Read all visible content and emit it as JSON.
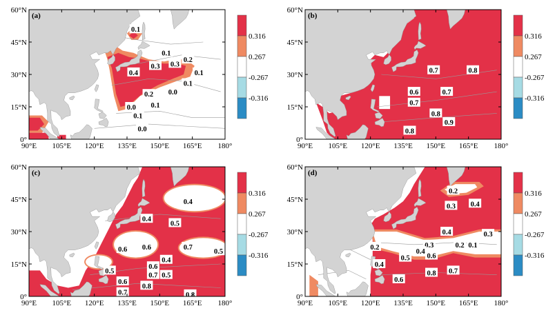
{
  "colors": {
    "land": "#d3d3d3",
    "ocean": "#ffffff",
    "strong_pos": "#e33148",
    "weak_pos": "#ef8a62",
    "neutral": "#ffffff",
    "weak_neg": "#a6dbe4",
    "strong_neg": "#2b8cc4",
    "contour": "#9a9a9a"
  },
  "axes": {
    "x_ticks": [
      "90°E",
      "105°E",
      "120°E",
      "135°E",
      "150°E",
      "165°E",
      "180°"
    ],
    "y_ticks": [
      "0°",
      "15°N",
      "30°N",
      "45°N",
      "60°N"
    ],
    "x_range": [
      90,
      180
    ],
    "y_range": [
      0,
      60
    ]
  },
  "colorbar": {
    "labels": [
      "0.316",
      "0.267",
      "-0.267",
      "-0.316"
    ],
    "bins": [
      "strong_pos",
      "weak_pos",
      "neutral",
      "weak_neg",
      "strong_neg"
    ]
  },
  "panels": [
    {
      "id": "a",
      "label": "(a)",
      "contour_labels": [
        {
          "text": "0.1",
          "lon": 139,
          "lat": 51
        },
        {
          "text": "0.1",
          "lon": 153,
          "lat": 40
        },
        {
          "text": "0.3",
          "lon": 148,
          "lat": 34
        },
        {
          "text": "0.3",
          "lon": 157,
          "lat": 35
        },
        {
          "text": "0.2",
          "lon": 163,
          "lat": 37
        },
        {
          "text": "0.4",
          "lon": 138,
          "lat": 31
        },
        {
          "text": "0.1",
          "lon": 168,
          "lat": 31
        },
        {
          "text": "0.1",
          "lon": 163,
          "lat": 26
        },
        {
          "text": "0.2",
          "lon": 145,
          "lat": 21
        },
        {
          "text": "0.0",
          "lon": 156,
          "lat": 22
        },
        {
          "text": "0.1",
          "lon": 148,
          "lat": 16
        },
        {
          "text": "0.0",
          "lon": 137,
          "lat": 15
        },
        {
          "text": "0.1",
          "lon": 140,
          "lat": 11
        },
        {
          "text": "0.0",
          "lon": 142,
          "lat": 5
        }
      ]
    },
    {
      "id": "b",
      "label": "(b)",
      "contour_labels": [
        {
          "text": "0.7",
          "lon": 149,
          "lat": 32
        },
        {
          "text": "0.8",
          "lon": 167,
          "lat": 32
        },
        {
          "text": "0.6",
          "lon": 140,
          "lat": 22
        },
        {
          "text": "0.7",
          "lon": 155,
          "lat": 22
        },
        {
          "text": "0.7",
          "lon": 140,
          "lat": 17
        },
        {
          "text": "0.8",
          "lon": 150,
          "lat": 12
        },
        {
          "text": "0.9",
          "lon": 156,
          "lat": 8
        },
        {
          "text": "0.8",
          "lon": 138,
          "lat": 4
        }
      ]
    },
    {
      "id": "c",
      "label": "(c)",
      "contour_labels": [
        {
          "text": "0.4",
          "lon": 163,
          "lat": 44
        },
        {
          "text": "0.4",
          "lon": 144,
          "lat": 36
        },
        {
          "text": "0.5",
          "lon": 157,
          "lat": 34
        },
        {
          "text": "0.6",
          "lon": 133,
          "lat": 22
        },
        {
          "text": "0.6",
          "lon": 144,
          "lat": 23
        },
        {
          "text": "0.7",
          "lon": 163,
          "lat": 23
        },
        {
          "text": "0.5",
          "lon": 177,
          "lat": 21
        },
        {
          "text": "0.4",
          "lon": 153,
          "lat": 17
        },
        {
          "text": "0.6",
          "lon": 147,
          "lat": 14
        },
        {
          "text": "0.5",
          "lon": 127,
          "lat": 12
        },
        {
          "text": "0.7",
          "lon": 147,
          "lat": 10
        },
        {
          "text": "0.5",
          "lon": 153,
          "lat": 10
        },
        {
          "text": "0.6",
          "lon": 133,
          "lat": 7
        },
        {
          "text": "0.8",
          "lon": 144,
          "lat": 5
        },
        {
          "text": "0.7",
          "lon": 133,
          "lat": 2
        },
        {
          "text": "0.8",
          "lon": 164,
          "lat": 1
        }
      ]
    },
    {
      "id": "d",
      "label": "(d)",
      "contour_labels": [
        {
          "text": "0.2",
          "lon": 158,
          "lat": 49
        },
        {
          "text": "0.3",
          "lon": 157,
          "lat": 42
        },
        {
          "text": "0.4",
          "lon": 168,
          "lat": 43
        },
        {
          "text": "0.4",
          "lon": 155,
          "lat": 30
        },
        {
          "text": "0.3",
          "lon": 174,
          "lat": 29
        },
        {
          "text": "0.3",
          "lon": 147,
          "lat": 24
        },
        {
          "text": "0.2",
          "lon": 161,
          "lat": 24
        },
        {
          "text": "0.1",
          "lon": 167,
          "lat": 24
        },
        {
          "text": "0.2",
          "lon": 122,
          "lat": 23
        },
        {
          "text": "0.4",
          "lon": 143,
          "lat": 21
        },
        {
          "text": "0.6",
          "lon": 148,
          "lat": 19
        },
        {
          "text": "0.5",
          "lon": 136,
          "lat": 18
        },
        {
          "text": "0.4",
          "lon": 124,
          "lat": 15
        },
        {
          "text": "0.8",
          "lon": 148,
          "lat": 11
        },
        {
          "text": "0.7",
          "lon": 158,
          "lat": 12
        },
        {
          "text": "0.6",
          "lon": 133,
          "lat": 8
        }
      ]
    }
  ]
}
